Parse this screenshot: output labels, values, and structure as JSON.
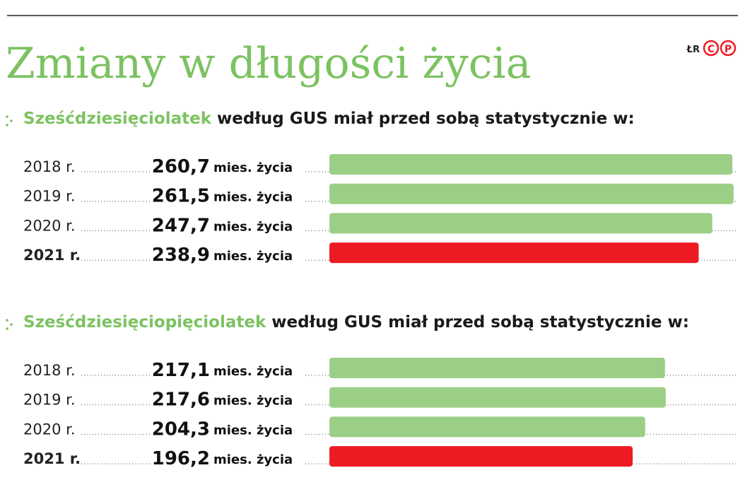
{
  "title": "Zmiany w długości życia",
  "credit": "ŁR",
  "logo": [
    "C",
    "P"
  ],
  "chart_data": [
    {
      "type": "bar",
      "subtitle_highlight": "Sześćdziesięciolatek",
      "subtitle": "według GUS miał przed sobą statystycznie w:",
      "categories": [
        "2018 r.",
        "2019 r.",
        "2020 r.",
        "2021 r."
      ],
      "values": [
        260.7,
        261.5,
        247.7,
        238.9
      ],
      "value_labels": [
        "260,7",
        "261,5",
        "247,7",
        "238,9"
      ],
      "unit": "mies. życia",
      "colors": [
        "#9ccf86",
        "#9ccf86",
        "#9ccf86",
        "#ed1c24"
      ]
    },
    {
      "type": "bar",
      "subtitle_highlight": "Sześćdziesięciopięciolatek",
      "subtitle": "według GUS miał przed sobą statystycznie w:",
      "categories": [
        "2018 r.",
        "2019 r.",
        "2020 r.",
        "2021 r."
      ],
      "values": [
        217.1,
        217.6,
        204.3,
        196.2
      ],
      "value_labels": [
        "217,1",
        "217,6",
        "204,3",
        "196,2"
      ],
      "unit": "mies. życia",
      "colors": [
        "#9ccf86",
        "#9ccf86",
        "#9ccf86",
        "#ed1c24"
      ]
    }
  ]
}
